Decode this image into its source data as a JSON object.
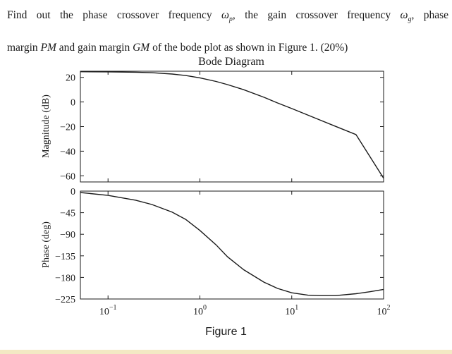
{
  "question": {
    "line1_a": "Find out the phase crossover frequency ",
    "omega_p": "ω",
    "omega_p_sub": "p",
    "line1_b": ", the gain crossover frequency ",
    "omega_g": "ω",
    "omega_g_sub": "g",
    "line1_c": ", phase",
    "line2_a": "margin ",
    "pm": "PM",
    "line2_b": " and gain margin ",
    "gm": "GM",
    "line2_c": " of the bode plot as shown in Figure 1. (20%)"
  },
  "figure_caption": "Figure 1",
  "chart_data": [
    {
      "type": "line",
      "title": "Bode Diagram",
      "ylabel": "Magnitude (dB)",
      "xscale": "log",
      "xlim": [
        0.05,
        100
      ],
      "ylim": [
        -65,
        25
      ],
      "yticks": [
        20,
        0,
        -20,
        -40,
        -60
      ],
      "ytick_labels": [
        "20",
        "0",
        "−20",
        "−40",
        "−60"
      ],
      "grid": false,
      "series": [
        {
          "x": [
            0.05,
            0.1,
            0.2,
            0.3,
            0.5,
            0.7,
            1,
            1.5,
            2,
            3,
            5,
            7,
            10,
            20,
            30,
            50,
            100
          ],
          "y": [
            24.6,
            24.5,
            24.2,
            23.8,
            22.7,
            21.5,
            19.6,
            16.7,
            14.1,
            10,
            3.8,
            -0.8,
            -5.3,
            -14.5,
            -19.8,
            -26.5,
            -62
          ]
        }
      ]
    },
    {
      "type": "line",
      "ylabel": "Phase (deg)",
      "xscale": "log",
      "xlim": [
        0.05,
        100
      ],
      "ylim": [
        -225,
        0
      ],
      "yticks": [
        0,
        -45,
        -90,
        -135,
        -180,
        -225
      ],
      "ytick_labels": [
        "0",
        "−45",
        "−90",
        "−135",
        "−180",
        "−225"
      ],
      "xticks": [
        0.1,
        1,
        10,
        100
      ],
      "xtick_labels": [
        {
          "base": "10",
          "exp": "−1"
        },
        {
          "base": "10",
          "exp": "0"
        },
        {
          "base": "10",
          "exp": "1"
        },
        {
          "base": "10",
          "exp": "2"
        }
      ],
      "grid": false,
      "series": [
        {
          "x": [
            0.05,
            0.1,
            0.2,
            0.3,
            0.5,
            0.7,
            1,
            1.5,
            2,
            3,
            5,
            7,
            10,
            15,
            20,
            30,
            50,
            70,
            100
          ],
          "y": [
            -3,
            -9,
            -19,
            -28,
            -44,
            -59,
            -82,
            -112,
            -137,
            -164,
            -190,
            -203,
            -212,
            -217,
            -218,
            -218,
            -214,
            -210,
            -205
          ]
        }
      ]
    }
  ]
}
